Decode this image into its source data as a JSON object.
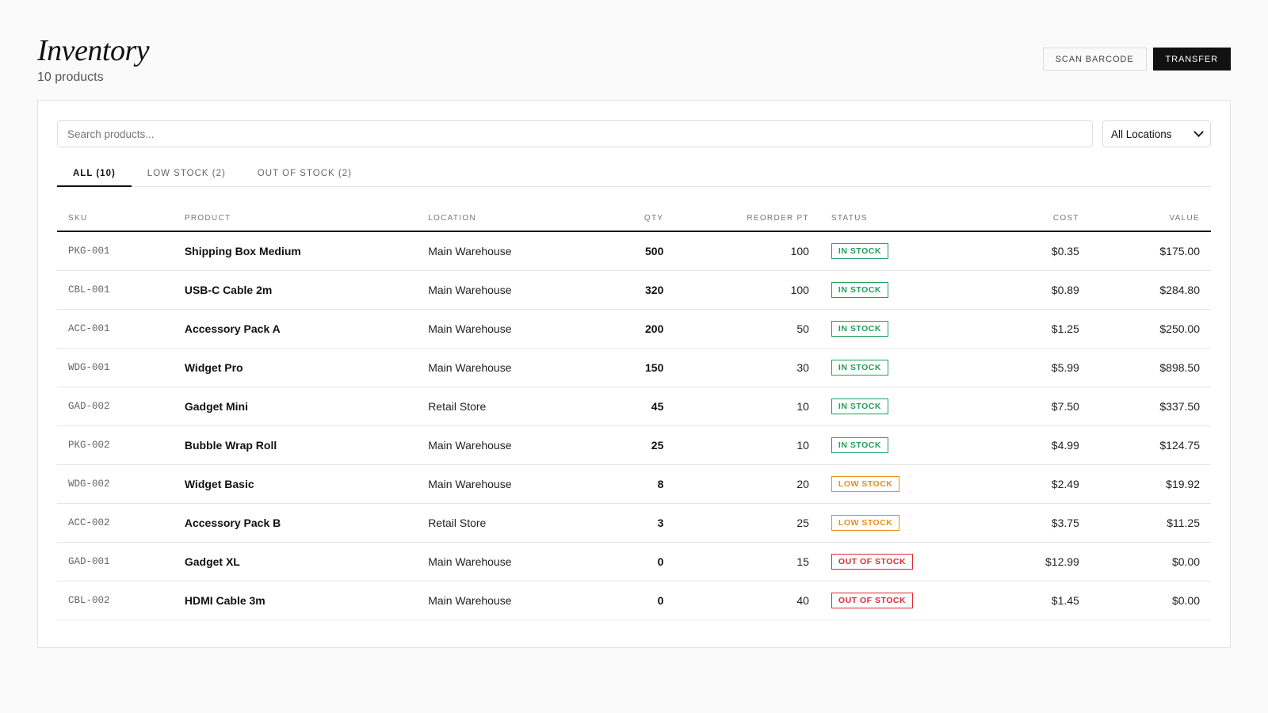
{
  "header": {
    "title": "Inventory",
    "subtitle": "10 products",
    "scan_barcode_label": "SCAN BARCODE",
    "transfer_label": "TRANSFER"
  },
  "toolbar": {
    "search_placeholder": "Search products...",
    "search_value": "",
    "location_selected": "All Locations"
  },
  "tabs": [
    {
      "label": "ALL (10)",
      "active": true
    },
    {
      "label": "LOW STOCK (2)",
      "active": false
    },
    {
      "label": "OUT OF STOCK (2)",
      "active": false
    }
  ],
  "table": {
    "columns": [
      "SKU",
      "PRODUCT",
      "LOCATION",
      "QTY",
      "REORDER PT",
      "STATUS",
      "COST",
      "VALUE"
    ],
    "rows": [
      {
        "sku": "PKG-001",
        "product": "Shipping Box Medium",
        "location": "Main Warehouse",
        "qty": "500",
        "reorder": "100",
        "status": "IN STOCK",
        "status_type": "in",
        "cost": "$0.35",
        "value": "$175.00"
      },
      {
        "sku": "CBL-001",
        "product": "USB-C Cable 2m",
        "location": "Main Warehouse",
        "qty": "320",
        "reorder": "100",
        "status": "IN STOCK",
        "status_type": "in",
        "cost": "$0.89",
        "value": "$284.80"
      },
      {
        "sku": "ACC-001",
        "product": "Accessory Pack A",
        "location": "Main Warehouse",
        "qty": "200",
        "reorder": "50",
        "status": "IN STOCK",
        "status_type": "in",
        "cost": "$1.25",
        "value": "$250.00"
      },
      {
        "sku": "WDG-001",
        "product": "Widget Pro",
        "location": "Main Warehouse",
        "qty": "150",
        "reorder": "30",
        "status": "IN STOCK",
        "status_type": "in",
        "cost": "$5.99",
        "value": "$898.50"
      },
      {
        "sku": "GAD-002",
        "product": "Gadget Mini",
        "location": "Retail Store",
        "qty": "45",
        "reorder": "10",
        "status": "IN STOCK",
        "status_type": "in",
        "cost": "$7.50",
        "value": "$337.50"
      },
      {
        "sku": "PKG-002",
        "product": "Bubble Wrap Roll",
        "location": "Main Warehouse",
        "qty": "25",
        "reorder": "10",
        "status": "IN STOCK",
        "status_type": "in",
        "cost": "$4.99",
        "value": "$124.75"
      },
      {
        "sku": "WDG-002",
        "product": "Widget Basic",
        "location": "Main Warehouse",
        "qty": "8",
        "reorder": "20",
        "status": "LOW STOCK",
        "status_type": "low",
        "cost": "$2.49",
        "value": "$19.92"
      },
      {
        "sku": "ACC-002",
        "product": "Accessory Pack B",
        "location": "Retail Store",
        "qty": "3",
        "reorder": "25",
        "status": "LOW STOCK",
        "status_type": "low",
        "cost": "$3.75",
        "value": "$11.25"
      },
      {
        "sku": "GAD-001",
        "product": "Gadget XL",
        "location": "Main Warehouse",
        "qty": "0",
        "reorder": "15",
        "status": "OUT OF STOCK",
        "status_type": "out",
        "cost": "$12.99",
        "value": "$0.00"
      },
      {
        "sku": "CBL-002",
        "product": "HDMI Cable 3m",
        "location": "Main Warehouse",
        "qty": "0",
        "reorder": "40",
        "status": "OUT OF STOCK",
        "status_type": "out",
        "cost": "$1.45",
        "value": "$0.00"
      }
    ]
  },
  "colors": {
    "in_stock": "#21a05a",
    "low_stock": "#e3901d",
    "out_of_stock": "#dc2a35",
    "primary": "#111111"
  },
  "icons": {
    "select_arrow": "chevron-down-icon"
  }
}
